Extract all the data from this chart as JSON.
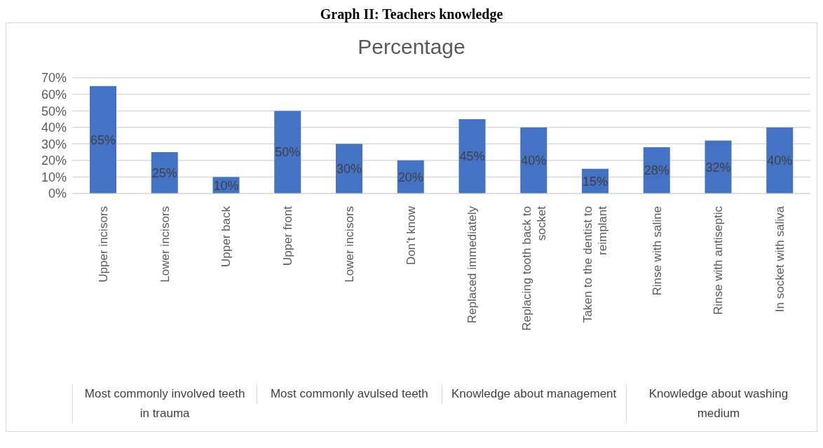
{
  "chart_data": {
    "type": "bar",
    "title": "Graph II: Teachers knowledge",
    "subtitle": "Percentage",
    "categories": [
      "Upper incisors",
      "Lower incisors",
      "Upper back",
      "Upper front",
      "Lower incisors",
      "Don’t know",
      "Replaced immediately",
      "Replacing tooth back to socket",
      "Taken to the dentist to reimplant",
      "Rinse with saline",
      "Rinse with antiseptic",
      "In socket with saliva"
    ],
    "values": [
      65,
      25,
      10,
      50,
      30,
      20,
      45,
      40,
      15,
      28,
      32,
      40
    ],
    "value_labels": [
      "65%",
      "25%",
      "10%",
      "50%",
      "30%",
      "20%",
      "45%",
      "40%",
      "15%",
      "28%",
      "32%",
      "40%"
    ],
    "color": "#4472c4",
    "ylim": [
      0,
      70
    ],
    "yticks": [
      {
        "value": 0,
        "label": "0%"
      },
      {
        "value": 10,
        "label": "10%"
      },
      {
        "value": 20,
        "label": "20%"
      },
      {
        "value": 30,
        "label": "30%"
      },
      {
        "value": 40,
        "label": "40%"
      },
      {
        "value": 50,
        "label": "50%"
      },
      {
        "value": 60,
        "label": "60%"
      },
      {
        "value": 70,
        "label": "70%"
      }
    ],
    "grid": "y",
    "annotations": [
      "Most commonly involved teeth in trauma",
      "Most commonly avulsed teeth",
      "Knowledge about management",
      "Knowledge about washing medium"
    ]
  }
}
